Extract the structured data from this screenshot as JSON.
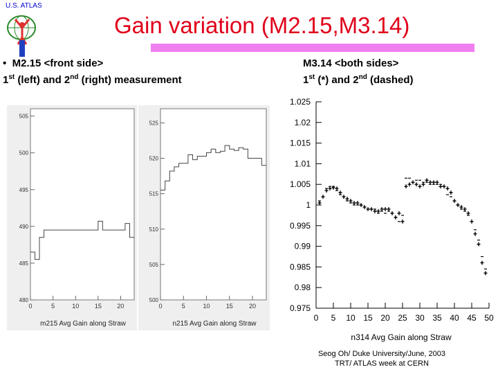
{
  "logo": {
    "text": "U.S. ATLAS",
    "colors": {
      "ring": "#2a8a2a",
      "figure": "#e03030",
      "pillar": "#2040c0"
    }
  },
  "title": "Gain variation (M2.15,M3.14)",
  "left_heading": {
    "bullet": "•",
    "line1": "M2.15 <front side>",
    "line2_pre": "1",
    "line2_sup1": "st",
    "line2_mid": " (left) and 2",
    "line2_sup2": "nd",
    "line2_post": " (right) measurement"
  },
  "right_heading": {
    "line1": "M3.14 <both sides>",
    "line2_pre": "1",
    "line2_sup1": "st",
    "line2_mid": " (*) and 2",
    "line2_sup2": "nd",
    "line2_post": " (dashed)"
  },
  "credit": {
    "line1": "Seog Oh/ Duke University/June, 2003",
    "line2": "TRT/ ATLAS week at CERN"
  },
  "colors": {
    "title": "#e0001a",
    "accent_bar": "#f07ff0",
    "panel_bg": "#efefef"
  },
  "chart_data": [
    {
      "type": "histogram",
      "xlabel": "m215  Avg Gain along Straw",
      "ylim": [
        480,
        506
      ],
      "xlim": [
        0,
        23
      ],
      "xticks": [
        "0",
        "5",
        "10",
        "15",
        "20"
      ],
      "yticks": [
        "480",
        "485",
        "490",
        "495",
        "500",
        "505"
      ],
      "bin_width": 1,
      "values": [
        486.5,
        485.5,
        488.5,
        489.5,
        489.5,
        489.5,
        489.5,
        489.5,
        489.5,
        489.5,
        489.5,
        489.5,
        489.5,
        489.5,
        489.5,
        490.7,
        489.5,
        489.5,
        489.5,
        489.5,
        489.5,
        490.4,
        488.5
      ]
    },
    {
      "type": "histogram",
      "xlabel": "n215  Avg Gain along Straw",
      "ylim": [
        500,
        527
      ],
      "xlim": [
        0,
        23
      ],
      "xticks": [
        "0",
        "5",
        "10",
        "15",
        "20"
      ],
      "yticks": [
        "500",
        "505",
        "510",
        "515",
        "520",
        "525"
      ],
      "bin_width": 1,
      "values": [
        515.5,
        516.8,
        518.2,
        518.8,
        519.3,
        519.3,
        520.5,
        519.8,
        520.3,
        520.3,
        520.8,
        521.3,
        520.8,
        521.0,
        521.8,
        521.3,
        521.1,
        521.5,
        521.3,
        520.0,
        520.0,
        520.0,
        519.0
      ]
    },
    {
      "type": "scatter",
      "xlabel": "n314  Avg Gain along Straw",
      "ylim": [
        0.975,
        1.025
      ],
      "xlim": [
        0,
        50
      ],
      "xticks": [
        "0",
        "5",
        "10",
        "15",
        "20",
        "25",
        "30",
        "35",
        "40",
        "45",
        "50"
      ],
      "yticks": [
        "0.975",
        "0.98",
        "0.985",
        "0.99",
        "0.995",
        "1",
        "1.005",
        "1.01",
        "1.015",
        "1.02",
        "1.025"
      ],
      "series": [
        {
          "name": "1st measurement (*)",
          "x": [
            1,
            2,
            3,
            4,
            5,
            6,
            7,
            8,
            9,
            10,
            11,
            12,
            13,
            14,
            15,
            16,
            17,
            18,
            19,
            20,
            21,
            22,
            23,
            24,
            25,
            26,
            27,
            28,
            29,
            30,
            31,
            32,
            33,
            34,
            35,
            36,
            37,
            38,
            39,
            40,
            41,
            42,
            43,
            44,
            45,
            46,
            47,
            48,
            49
          ],
          "y": [
            1.0005,
            1.002,
            1.0035,
            1.004,
            1.0042,
            1.004,
            1.003,
            1.002,
            1.0015,
            1.001,
            1.0005,
            1.0005,
            1.0,
            0.9995,
            0.999,
            0.999,
            0.9985,
            0.9985,
            0.999,
            0.999,
            0.999,
            0.998,
            0.997,
            0.998,
            0.996,
            1.0045,
            1.005,
            1.0055,
            1.005,
            1.0045,
            1.005,
            1.006,
            1.0055,
            1.0055,
            1.0055,
            1.0045,
            1.0045,
            1.004,
            1.003,
            1.001,
            1.0,
            0.9995,
            0.999,
            0.998,
            0.996,
            0.993,
            0.9905,
            0.986,
            0.9835
          ]
        },
        {
          "name": "2nd measurement (dashed)",
          "x": [
            1,
            2,
            3,
            4,
            5,
            6,
            7,
            8,
            9,
            10,
            11,
            12,
            13,
            14,
            15,
            16,
            17,
            18,
            19,
            20,
            21,
            22,
            23,
            24,
            25,
            26,
            27,
            28,
            29,
            30,
            31,
            32,
            33,
            34,
            35,
            36,
            37,
            38,
            39,
            40,
            41,
            42,
            43,
            44,
            45,
            46,
            47,
            48,
            49
          ],
          "y": [
            1.001,
            1.002,
            1.004,
            1.0045,
            1.0045,
            1.0035,
            1.0025,
            1.002,
            1.001,
            1.0005,
            1.0,
            1.0,
            1.0,
            0.9995,
            0.999,
            0.999,
            0.999,
            0.998,
            0.9985,
            0.998,
            0.9985,
            0.998,
            0.997,
            0.996,
            0.9975,
            1.0065,
            1.0065,
            1.0055,
            1.006,
            1.006,
            1.0055,
            1.0055,
            1.005,
            1.005,
            1.005,
            1.005,
            1.0045,
            1.0025,
            1.002,
            1.001,
            1.0,
            0.999,
            0.9985,
            0.9975,
            0.996,
            0.994,
            0.9915,
            0.9875,
            0.9845
          ]
        }
      ]
    }
  ]
}
